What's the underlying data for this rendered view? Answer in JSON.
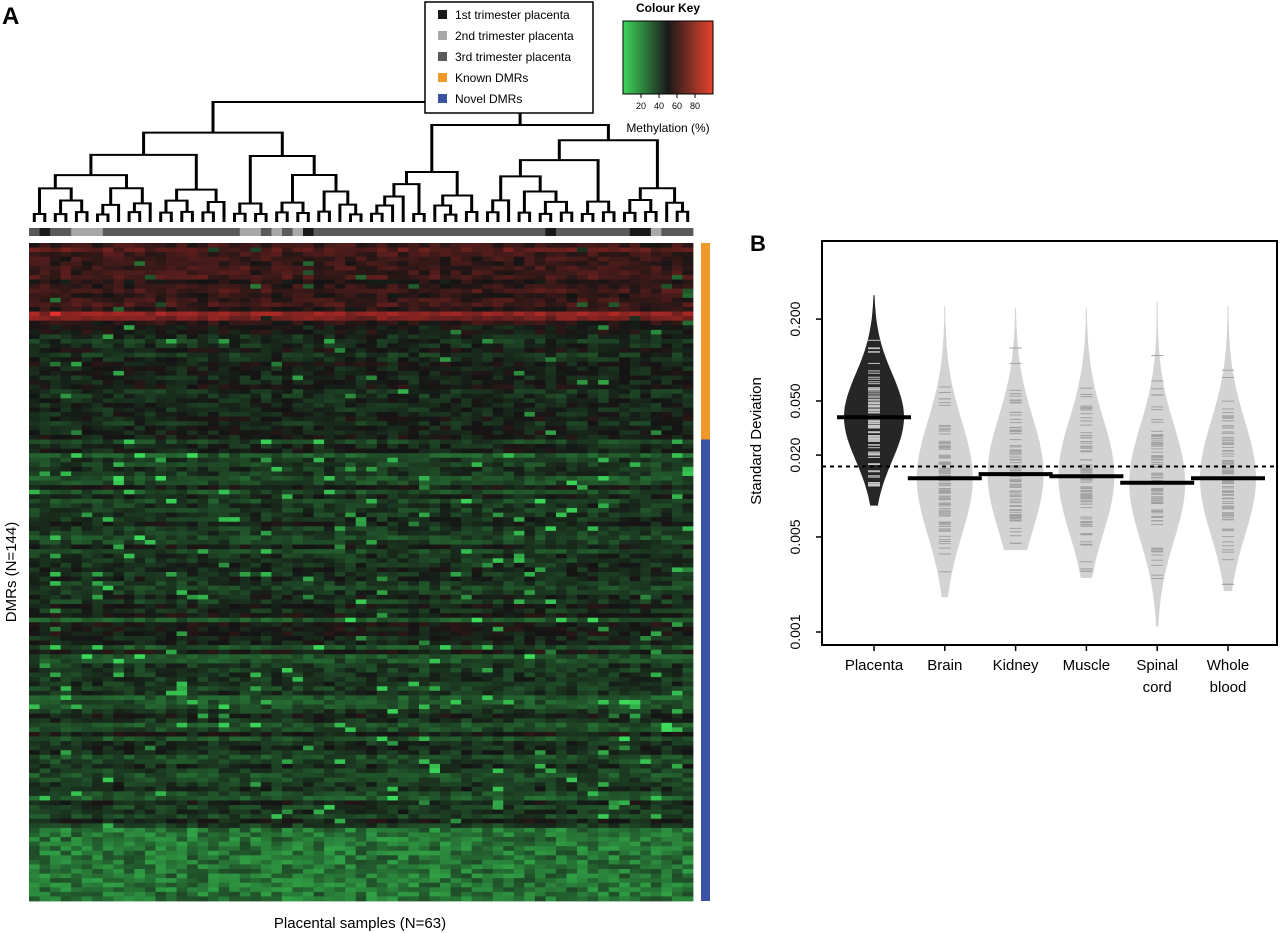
{
  "panels": {
    "a_label": "A",
    "b_label": "B"
  },
  "legend": {
    "items": [
      {
        "label": "1st trimester placenta",
        "color": "#1a1a1a"
      },
      {
        "label": "2nd trimester placenta",
        "color": "#a8a8a8"
      },
      {
        "label": "3rd trimester placenta",
        "color": "#5a5a5a"
      },
      {
        "label": "Known DMRs",
        "color": "#f0982a"
      },
      {
        "label": "Novel DMRs",
        "color": "#3a53a4"
      }
    ]
  },
  "colour_key": {
    "title": "Colour Key",
    "ticks": [
      "20",
      "40",
      "60",
      "80"
    ],
    "tick_values": [
      20,
      40,
      60,
      80
    ],
    "range": [
      0,
      100
    ],
    "xlabel": "Methylation (%)",
    "low_color": "#3ed65a",
    "mid_color": "#1a1a1a",
    "high_color": "#e8432e"
  },
  "heatmap": {
    "xlabel": "Placental samples (N=63)",
    "ylabel": "DMRs (N=144)",
    "n_samples": 63,
    "n_dmrs": 144,
    "n_known_dmrs": 43,
    "n_novel_dmrs": 101,
    "sample_trimesters": [
      3,
      1,
      3,
      3,
      2,
      2,
      2,
      3,
      3,
      3,
      3,
      3,
      3,
      3,
      3,
      3,
      3,
      3,
      3,
      3,
      2,
      2,
      3,
      2,
      3,
      2,
      1,
      3,
      3,
      3,
      3,
      3,
      3,
      3,
      3,
      3,
      3,
      3,
      3,
      3,
      3,
      3,
      3,
      3,
      3,
      3,
      3,
      3,
      3,
      1,
      3,
      3,
      3,
      3,
      3,
      3,
      3,
      1,
      1,
      2,
      3,
      3,
      3
    ]
  },
  "chart_data": {
    "type": "violin",
    "ylabel": "Standard Deviation",
    "yscale": "log",
    "ylim": [
      0.001,
      0.5
    ],
    "yticks": [
      "0.001",
      "0.005",
      "0.020",
      "0.050",
      "0.200"
    ],
    "ytick_values": [
      0.001,
      0.005,
      0.02,
      0.05,
      0.2
    ],
    "categories": [
      "Placenta",
      "Brain",
      "Kidney",
      "Muscle",
      "Spinal cord",
      "Whole blood"
    ],
    "category_labels": [
      [
        "Placenta"
      ],
      [
        "Brain"
      ],
      [
        "Kidney"
      ],
      [
        "Muscle"
      ],
      [
        "Spinal",
        "cord"
      ],
      [
        "Whole",
        "blood"
      ]
    ],
    "medians": [
      0.038,
      0.0135,
      0.0145,
      0.014,
      0.0125,
      0.0135
    ],
    "ranges": [
      [
        0.0085,
        0.3
      ],
      [
        0.0018,
        0.25
      ],
      [
        0.004,
        0.24
      ],
      [
        0.0025,
        0.24
      ],
      [
        0.0011,
        0.27
      ],
      [
        0.002,
        0.25
      ]
    ],
    "reference_line": 0.0165,
    "fill_colors": [
      "#262626",
      "#d3d3d3",
      "#d3d3d3",
      "#d3d3d3",
      "#d3d3d3",
      "#d3d3d3"
    ],
    "strip_colors": [
      "#c8c8c8",
      "#a0a0a0",
      "#a0a0a0",
      "#a0a0a0",
      "#a0a0a0",
      "#a0a0a0"
    ],
    "grid": false
  }
}
